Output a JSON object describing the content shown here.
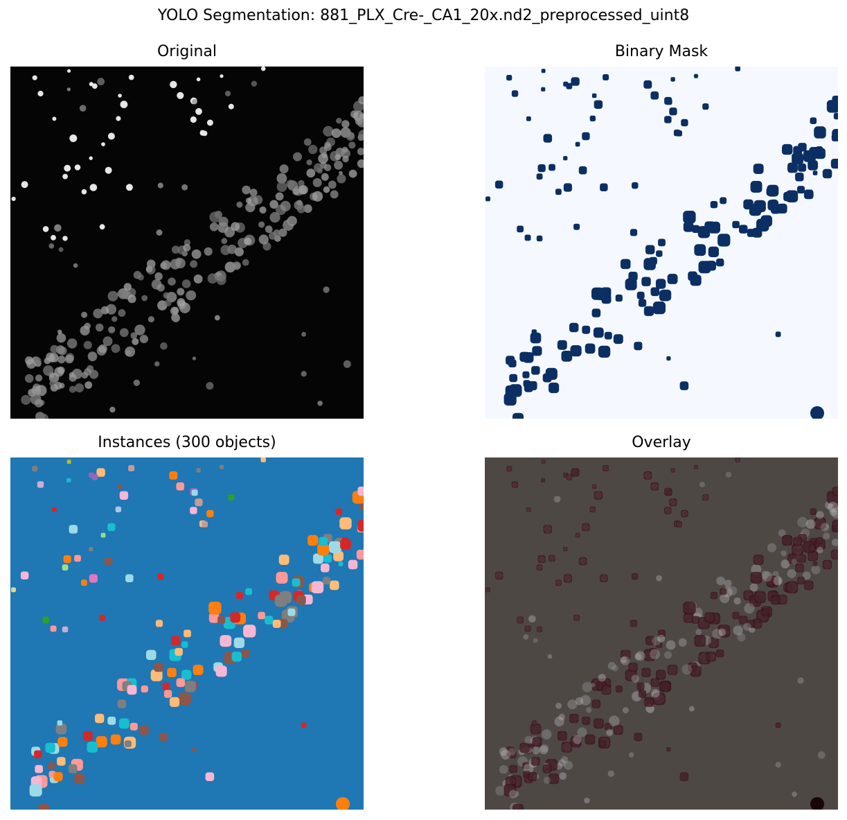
{
  "figure": {
    "title": "YOLO Segmentation: 881_PLX_Cre-_CA1_20x.nd2_preprocessed_uint8"
  },
  "panels": [
    {
      "key": "original",
      "title": "Original",
      "icon": "grayscale-nuclei-image"
    },
    {
      "key": "mask",
      "title": "Binary Mask",
      "icon": "binary-mask-image"
    },
    {
      "key": "instances",
      "title": "Instances (300 objects)",
      "icon": "instance-label-image"
    },
    {
      "key": "overlay",
      "title": "Overlay",
      "icon": "overlay-image"
    }
  ],
  "colors": {
    "background": "#ffffff",
    "original_bg": "#050505",
    "mask_bg": "#f5f9ff",
    "mask_fg": "#0b2f63",
    "instances_bg": "#1f77b4",
    "overlay_bg": "#4e4845",
    "overlay_fg": "#3a1219",
    "instance_palette": [
      "#ff7f0e",
      "#2ca02c",
      "#d62728",
      "#9467bd",
      "#8c564b",
      "#e377c2",
      "#7f7f7f",
      "#bcbd22",
      "#17becf",
      "#aec7e8",
      "#ffbb78",
      "#98df8a",
      "#ff9896",
      "#c5b0d5",
      "#f7b6d2",
      "#dbdb8d",
      "#9edae5",
      "#c49c94"
    ]
  }
}
